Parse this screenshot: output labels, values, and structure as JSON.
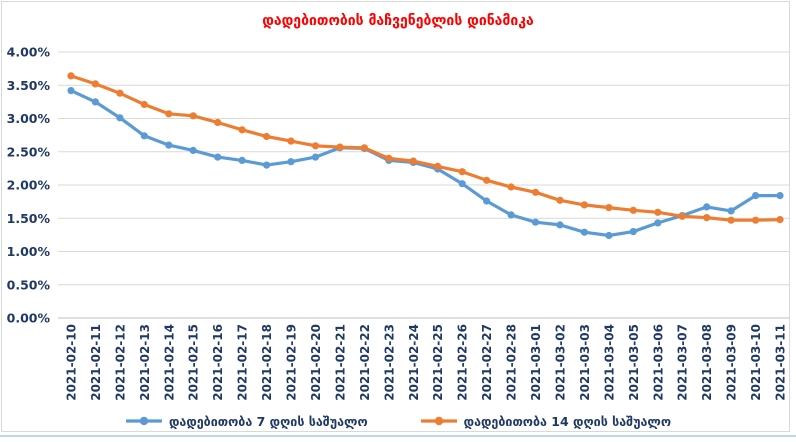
{
  "chart_data": {
    "type": "line",
    "title": "დადებითობის მაჩვენებლის დინამიკა",
    "title_color": "#FF0000",
    "axis_text_color": "#1F3864",
    "gridline_color": "#D9D9D9",
    "axis_line_color": "#BFBFBF",
    "grid": true,
    "legend_position": "bottom",
    "ylim": [
      0,
      4
    ],
    "y_tick_step": 0.5,
    "y_tick_labels": [
      "0.00%",
      "0.50%",
      "1.00%",
      "1.50%",
      "2.00%",
      "2.50%",
      "3.00%",
      "3.50%",
      "4.00%"
    ],
    "x": [
      "2021-02-10",
      "2021-02-11",
      "2021-02-12",
      "2021-02-13",
      "2021-02-14",
      "2021-02-15",
      "2021-02-16",
      "2021-02-17",
      "2021-02-18",
      "2021-02-19",
      "2021-02-20",
      "2021-02-21",
      "2021-02-22",
      "2021-02-23",
      "2021-02-24",
      "2021-02-25",
      "2021-02-26",
      "2021-02-27",
      "2021-02-28",
      "2021-03-01",
      "2021-03-02",
      "2021-03-03",
      "2021-03-04",
      "2021-03-05",
      "2021-03-06",
      "2021-03-07",
      "2021-03-08",
      "2021-03-09",
      "2021-03-10",
      "2021-03-11"
    ],
    "series": [
      {
        "name": "დადებითობა 7 დღის საშუალო",
        "color": "#5B9BD5",
        "values": [
          3.42,
          3.25,
          3.01,
          2.74,
          2.6,
          2.52,
          2.42,
          2.37,
          2.3,
          2.35,
          2.42,
          2.56,
          2.55,
          2.37,
          2.34,
          2.24,
          2.02,
          1.76,
          1.55,
          1.44,
          1.4,
          1.29,
          1.24,
          1.3,
          1.43,
          1.54,
          1.67,
          1.61,
          1.84,
          1.84
        ]
      },
      {
        "name": "დადებითობა 14 დღის საშუალო",
        "color": "#ED7D31",
        "values": [
          3.64,
          3.52,
          3.38,
          3.21,
          3.07,
          3.04,
          2.94,
          2.83,
          2.73,
          2.66,
          2.59,
          2.57,
          2.56,
          2.4,
          2.36,
          2.28,
          2.2,
          2.07,
          1.97,
          1.89,
          1.77,
          1.7,
          1.66,
          1.62,
          1.59,
          1.53,
          1.51,
          1.47,
          1.47,
          1.48
        ]
      }
    ]
  }
}
